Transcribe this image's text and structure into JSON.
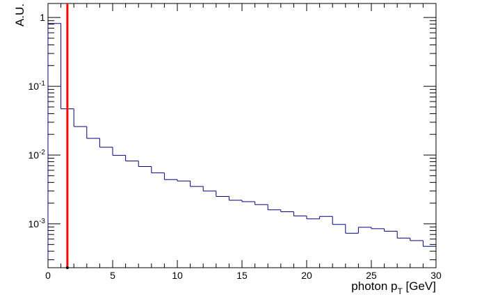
{
  "chart_data": {
    "type": "line",
    "style": "step-histogram",
    "xlabel_main": "photon p",
    "xlabel_sub": "T",
    "xlabel_unit": " [GeV]",
    "ylabel": "A.U.",
    "xlim": [
      0,
      30
    ],
    "ylim": [
      0.00023,
      1.6
    ],
    "yscale": "log",
    "grid": false,
    "x_tick_labels": [
      "0",
      "5",
      "10",
      "15",
      "20",
      "25",
      "30"
    ],
    "y_tick_labels": [
      {
        "base": "1",
        "exp": ""
      },
      {
        "base": "10",
        "exp": "-1"
      },
      {
        "base": "10",
        "exp": "-2"
      },
      {
        "base": "10",
        "exp": "-3"
      }
    ],
    "bin_edges": [
      0,
      1,
      2,
      3,
      4,
      5,
      6,
      7,
      8,
      9,
      10,
      11,
      12,
      13,
      14,
      15,
      16,
      17,
      18,
      19,
      20,
      21,
      22,
      23,
      24,
      25,
      26,
      27,
      28,
      29,
      30
    ],
    "values": [
      0.82,
      0.047,
      0.026,
      0.0175,
      0.013,
      0.0099,
      0.0082,
      0.0068,
      0.0055,
      0.0044,
      0.0042,
      0.0035,
      0.003,
      0.0025,
      0.0022,
      0.0021,
      0.0019,
      0.0016,
      0.0015,
      0.0013,
      0.00118,
      0.00128,
      0.00098,
      0.00073,
      0.00089,
      0.00085,
      0.00078,
      0.00062,
      0.00057,
      0.00047
    ],
    "cut_line": {
      "x": 1.5
    },
    "colors": {
      "histogram": "#000080",
      "cut_line": "#ff0000",
      "axes": "#000000"
    }
  }
}
